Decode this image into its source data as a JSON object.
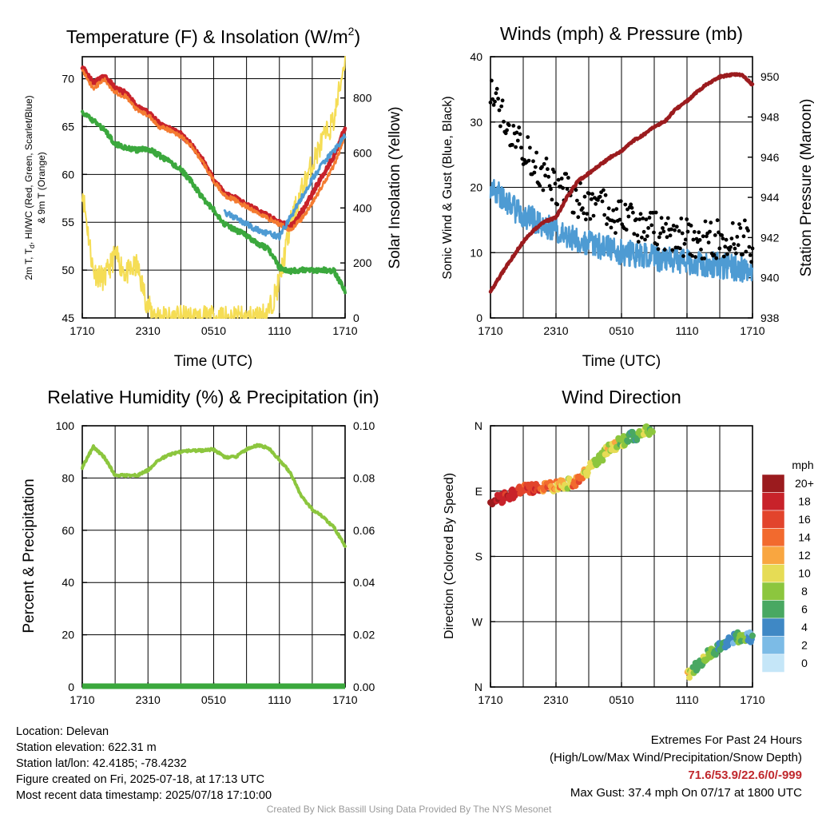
{
  "chart_data": [
    {
      "type": "line",
      "title": "Temperature (F) & Insolation (W/m2)",
      "title_main": "Temperature (F) & Insolation (W/m",
      "title_sup": "2",
      "title_close": ")",
      "xlabel": "Time (UTC)",
      "ylabel_line1": "2m T, T",
      "ylabel_sub": "d",
      "ylabel_rest": ", HI/WC (Red, Green, Scarlet/Blue)",
      "ylabel_line2": "& 9m T (Orange)",
      "y2label": "Solar Insolation (Yellow)",
      "x_ticks": [
        "1710",
        "2310",
        "0510",
        "1110",
        "1710"
      ],
      "y_ticks": [
        "45",
        "50",
        "55",
        "60",
        "65",
        "70"
      ],
      "y2_ticks": [
        "0",
        "200",
        "400",
        "600",
        "800"
      ],
      "ylim": [
        45,
        72.3
      ],
      "y2lim": [
        0,
        950
      ],
      "x_hours": [
        0,
        1,
        2,
        3,
        4,
        5,
        6,
        7,
        8,
        9,
        10,
        11,
        12,
        13,
        14,
        15,
        16,
        17,
        18,
        19,
        20,
        21,
        22,
        23,
        24
      ],
      "series": [
        {
          "color": "#c8222a",
          "values": [
            71.3,
            69.5,
            70.3,
            69.0,
            68.5,
            67.0,
            66.5,
            65.3,
            64.8,
            64.2,
            63.1,
            61.5,
            59.5,
            58.0,
            57.5,
            56.8,
            56.2,
            55.6,
            55.0,
            54.5,
            56.0,
            58.0,
            60.0,
            62.0,
            64.8
          ]
        },
        {
          "color": "#f47b30",
          "values": [
            70.9,
            69.0,
            69.9,
            68.6,
            68.1,
            66.7,
            66.2,
            65.0,
            64.6,
            64.0,
            62.9,
            61.3,
            59.3,
            57.8,
            57.3,
            56.6,
            56.0,
            55.4,
            54.8,
            54.2,
            55.3,
            57.0,
            59.0,
            61.0,
            64.0
          ]
        },
        {
          "color": "#4e9bd3",
          "values": [
            null,
            null,
            null,
            null,
            null,
            null,
            null,
            null,
            null,
            null,
            null,
            null,
            null,
            56.0,
            55.5,
            54.8,
            54.2,
            53.8,
            53.5,
            55.5,
            57.5,
            59.5,
            61.2,
            62.5,
            64.0
          ]
        },
        {
          "color": "#3ba83d",
          "values": [
            66.5,
            65.6,
            64.7,
            63.2,
            62.8,
            62.5,
            62.7,
            62.0,
            61.3,
            60.5,
            59.2,
            57.5,
            56.3,
            54.8,
            54.2,
            53.6,
            52.8,
            52.2,
            50.3,
            49.9,
            50.0,
            50.0,
            50.0,
            49.9,
            47.8
          ]
        },
        {
          "color": "#f5dd55",
          "axis": "y2",
          "values": [
            470,
            170,
            140,
            230,
            160,
            190,
            40,
            5,
            0,
            0,
            0,
            0,
            0,
            0,
            0,
            0,
            2,
            20,
            130,
            340,
            460,
            560,
            650,
            720,
            950
          ]
        }
      ]
    },
    {
      "type": "scatter",
      "title": "Winds (mph) & Pressure (mb)",
      "xlabel": "Time (UTC)",
      "ylabel": "Sonic Wind & Gust (Blue, Black)",
      "y2label": "Station Pressure (Maroon)",
      "x_ticks": [
        "1710",
        "2310",
        "0510",
        "1110",
        "1710"
      ],
      "y_ticks": [
        "0",
        "10",
        "20",
        "30",
        "40"
      ],
      "y2_ticks": [
        "938",
        "940",
        "942",
        "944",
        "946",
        "948",
        "950"
      ],
      "ylim": [
        0,
        40
      ],
      "y2lim": [
        938,
        951
      ],
      "x_hours": [
        0,
        1,
        2,
        3,
        4,
        5,
        6,
        7,
        8,
        9,
        10,
        11,
        12,
        13,
        14,
        15,
        16,
        17,
        18,
        19,
        20,
        21,
        22,
        23,
        24
      ],
      "series": [
        {
          "color": "#4e9bd3",
          "style": "line",
          "values": [
            20,
            18.5,
            17,
            15.5,
            15,
            14,
            13.5,
            12.5,
            12,
            11.5,
            11,
            10.5,
            10,
            9.8,
            9.5,
            9.2,
            9,
            8.8,
            8.5,
            8.5,
            8.2,
            8,
            7.8,
            7.5,
            6.5
          ]
        },
        {
          "color": "#000000",
          "style": "points",
          "values": [
            34,
            31,
            29,
            26,
            24,
            22,
            20,
            19,
            18,
            17.5,
            17,
            16,
            15.5,
            15,
            14,
            13.5,
            13,
            12.5,
            12.2,
            12,
            12,
            12,
            12.3,
            12.5,
            11
          ]
        },
        {
          "color": "#9b1b1e",
          "style": "line",
          "axis": "y2",
          "values": [
            939.3,
            940.2,
            941.0,
            941.8,
            942.4,
            942.8,
            943.0,
            944.0,
            944.8,
            945.2,
            945.6,
            946.0,
            946.3,
            946.8,
            947.1,
            947.5,
            947.8,
            948.4,
            948.8,
            949.3,
            949.7,
            950.0,
            950.1,
            950.1,
            949.6
          ]
        }
      ]
    },
    {
      "type": "line",
      "title": "Relative Humidity (%) & Precipitation (in)",
      "ylabel": "Percent & Precipitation",
      "x_ticks": [
        "1710",
        "2310",
        "0510",
        "1110",
        "1710"
      ],
      "y_ticks": [
        "0",
        "20",
        "40",
        "60",
        "80",
        "100"
      ],
      "y2_ticks": [
        "0.00",
        "0.02",
        "0.04",
        "0.06",
        "0.08",
        "0.10"
      ],
      "ylim": [
        0,
        100
      ],
      "y2lim": [
        0,
        0.1
      ],
      "x_hours": [
        0,
        1,
        2,
        3,
        4,
        5,
        6,
        7,
        8,
        9,
        10,
        11,
        12,
        13,
        14,
        15,
        16,
        17,
        18,
        19,
        20,
        21,
        22,
        23,
        24
      ],
      "series": [
        {
          "color": "#8cc63e",
          "values": [
            84,
            92,
            88,
            81,
            81,
            81,
            83,
            87,
            89,
            90,
            90.5,
            90.5,
            91,
            88,
            88,
            91,
            92.5,
            91.5,
            87,
            82,
            73,
            68,
            65,
            61,
            54
          ]
        },
        {
          "color": "#3ba83d",
          "axis": "y2",
          "values": [
            0,
            0,
            0,
            0,
            0,
            0,
            0,
            0,
            0,
            0,
            0,
            0,
            0,
            0,
            0,
            0,
            0,
            0,
            0,
            0,
            0,
            0,
            0,
            0,
            0
          ]
        }
      ]
    },
    {
      "type": "scatter",
      "title": "Wind Direction",
      "ylabel": "Direction (Colored By Speed)",
      "x_ticks": [
        "1710",
        "2310",
        "0510",
        "1110",
        "1710"
      ],
      "y_ticks": [
        "N",
        "E",
        "S",
        "W",
        "N"
      ],
      "ylim": [
        0,
        360
      ],
      "legend_title": "mph",
      "legend_labels": [
        "20+",
        "18",
        "16",
        "14",
        "12",
        "10",
        "8",
        "6",
        "4",
        "2",
        "0"
      ],
      "legend_colors": [
        "#9b1b1e",
        "#c8222a",
        "#e2442c",
        "#f26a2e",
        "#f9a640",
        "#e6dc55",
        "#8cc63e",
        "#49a862",
        "#3f88c5",
        "#7cbbe6",
        "#c5e6f8"
      ],
      "x_hours": [
        0,
        1,
        2,
        3,
        4,
        5,
        6,
        7,
        8,
        9,
        10,
        11,
        12,
        13,
        14,
        15,
        16,
        17,
        18,
        19,
        20,
        21,
        22,
        23,
        24
      ],
      "directions": [
        255,
        260,
        265,
        272,
        275,
        276,
        277,
        280,
        285,
        300,
        315,
        330,
        338,
        345,
        350,
        357,
        null,
        null,
        15,
        30,
        45,
        55,
        65,
        70,
        68
      ],
      "speed_colors": [
        "#9b1b1e",
        "#c8222a",
        "#c8222a",
        "#e2442c",
        "#e2442c",
        "#f26a2e",
        "#f9a640",
        "#e6dc55",
        "#f26a2e",
        "#e6dc55",
        "#8cc63e",
        "#e6dc55",
        "#8cc63e",
        "#49a862",
        "#8cc63e",
        "#8cc63e",
        null,
        null,
        "#e6dc55",
        "#49a862",
        "#8cc63e",
        "#49a862",
        "#3f88c5",
        "#8cc63e",
        "#3f88c5"
      ]
    }
  ],
  "footer": {
    "location": "Location: Delevan",
    "elevation": "Station elevation: 622.31 m",
    "latlon": "Station lat/lon: 42.4185; -78.4232",
    "created": "Figure created on Fri, 2025-07-18, at 17:13 UTC",
    "recent": "Most recent data timestamp: 2025/07/18 17:10:00",
    "extremes_title": "Extremes For Past 24 Hours",
    "extremes_legend": "(High/Low/Max Wind/Precipitation/Snow Depth)",
    "extremes_values": "71.6/53.9/22.6/0/-999",
    "max_gust": "Max Gust: 37.4 mph On 07/17 at 1800 UTC",
    "credit": "Created By Nick Bassill Using Data Provided By The NYS Mesonet"
  }
}
